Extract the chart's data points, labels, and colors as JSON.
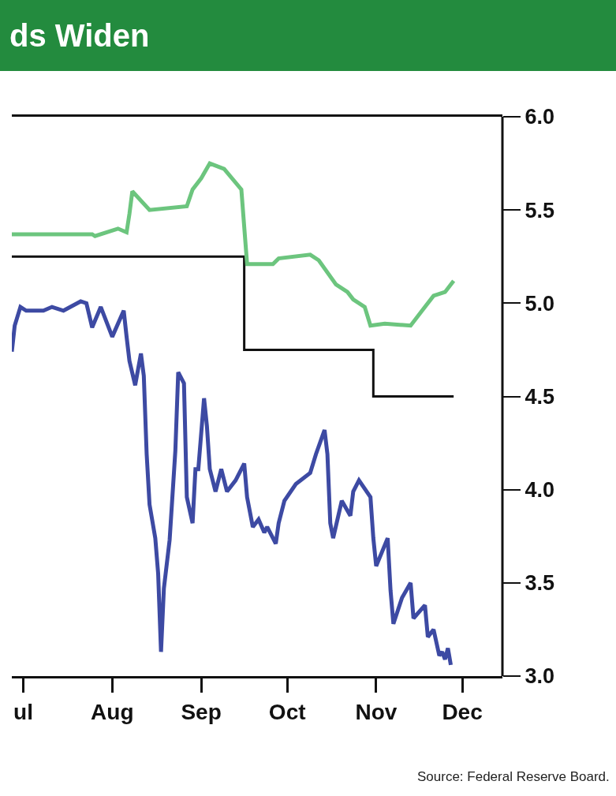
{
  "chart_data": {
    "type": "line",
    "title": "ds Widen",
    "annotations": [
      "Source: Federal Reserve Board."
    ],
    "xlim": [
      "--06-27",
      "--12-15"
    ],
    "xticks": [
      {
        "value": "--07-01",
        "label": "ul"
      },
      {
        "value": "--08-01",
        "label": "Aug"
      },
      {
        "value": "--09-01",
        "label": "Sep"
      },
      {
        "value": "--10-01",
        "label": "Oct"
      },
      {
        "value": "--11-01",
        "label": "Nov"
      },
      {
        "value": "--12-01",
        "label": "Dec"
      }
    ],
    "ylim": [
      3,
      6
    ],
    "yticks": [
      {
        "value": 3,
        "label": "3.0"
      },
      {
        "value": 3.5,
        "label": "3.5"
      },
      {
        "value": 4,
        "label": "4.0"
      },
      {
        "value": 4.5,
        "label": "4.5"
      },
      {
        "value": 5,
        "label": "5.0"
      },
      {
        "value": 5.5,
        "label": "5.5"
      },
      {
        "value": 6,
        "label": "6.0"
      }
    ],
    "grid": false,
    "legend": false,
    "marker": "none",
    "line_style": "solid",
    "series": [
      {
        "type": "step",
        "color": "#111111",
        "x": [
          "--06-27",
          "--09-16",
          "--10-31",
          "--11-28"
        ],
        "values": [
          5.25,
          4.75,
          4.5,
          4.5
        ]
      },
      {
        "color": "#6cc57e",
        "x": [
          "--06-27",
          "--07-25",
          "--07-26",
          "--08-03",
          "--08-06",
          "--08-07",
          "--08-08",
          "--08-14",
          "--08-27",
          "--08-29",
          "--09-01",
          "--09-04",
          "--09-09",
          "--09-15",
          "--09-17",
          "--09-26",
          "--09-28",
          "--10-09",
          "--10-12",
          "--10-18",
          "--10-22",
          "--10-24",
          "--10-28",
          "--10-30",
          "--11-04",
          "--11-13",
          "--11-17",
          "--11-21",
          "--11-25",
          "--11-28"
        ],
        "values": [
          5.37,
          5.37,
          5.36,
          5.4,
          5.38,
          5.48,
          5.6,
          5.5,
          5.52,
          5.61,
          5.67,
          5.75,
          5.72,
          5.61,
          5.21,
          5.21,
          5.24,
          5.26,
          5.23,
          5.1,
          5.06,
          5.02,
          4.98,
          4.88,
          4.89,
          4.88,
          4.96,
          5.04,
          5.06,
          5.12
        ]
      },
      {
        "color": "#3d4aa3",
        "x": [
          "--06-27",
          "--06-28",
          "--06-30",
          "--07-02",
          "--07-08",
          "--07-11",
          "--07-15",
          "--07-21",
          "--07-23",
          "--07-25",
          "--07-28",
          "--08-01",
          "--08-05",
          "--08-06",
          "--08-07",
          "--08-09",
          "--08-11",
          "--08-12",
          "--08-13",
          "--08-14",
          "--08-16",
          "--08-17",
          "--08-18",
          "--08-19",
          "--08-21",
          "--08-23",
          "--08-24",
          "--08-26",
          "--08-27",
          "--08-29",
          "--08-30",
          "--08-31",
          "--09-02",
          "--09-03",
          "--09-04",
          "--09-06",
          "--09-08",
          "--09-10",
          "--09-13",
          "--09-16",
          "--09-17",
          "--09-19",
          "--09-21",
          "--09-23",
          "--09-24",
          "--09-27",
          "--09-28",
          "--09-30",
          "--10-04",
          "--10-09",
          "--10-11",
          "--10-14",
          "--10-15",
          "--10-16",
          "--10-17",
          "--10-20",
          "--10-23",
          "--10-24",
          "--10-26",
          "--10-30",
          "--10-31",
          "--11-01",
          "--11-05",
          "--11-06",
          "--11-07",
          "--11-10",
          "--11-13",
          "--11-14",
          "--11-18",
          "--11-19",
          "--11-21",
          "--11-23",
          "--11-24",
          "--11-25",
          "--11-26",
          "--11-27"
        ],
        "values": [
          4.74,
          4.88,
          4.98,
          4.96,
          4.96,
          4.98,
          4.96,
          5.01,
          5.0,
          4.87,
          4.98,
          4.82,
          4.96,
          4.82,
          4.69,
          4.56,
          4.73,
          4.61,
          4.19,
          3.92,
          3.74,
          3.55,
          3.13,
          3.47,
          3.73,
          4.21,
          4.63,
          4.57,
          3.96,
          3.82,
          4.11,
          4.11,
          4.49,
          4.34,
          4.11,
          3.99,
          4.11,
          3.99,
          4.05,
          4.14,
          3.96,
          3.8,
          3.84,
          3.77,
          3.8,
          3.71,
          3.82,
          3.94,
          4.03,
          4.09,
          4.19,
          4.32,
          4.19,
          3.82,
          3.74,
          3.94,
          3.86,
          3.99,
          4.05,
          3.96,
          3.74,
          3.59,
          3.74,
          3.46,
          3.28,
          3.42,
          3.5,
          3.31,
          3.38,
          3.21,
          3.25,
          3.11,
          3.13,
          3.09,
          3.15,
          3.06
        ]
      }
    ]
  }
}
